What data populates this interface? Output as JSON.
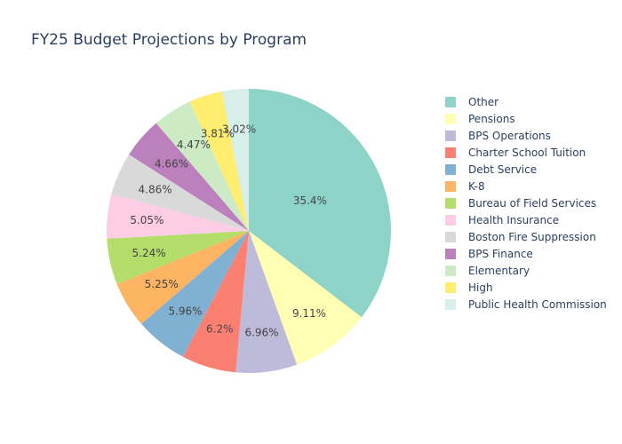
{
  "chart_data": {
    "type": "pie",
    "title": "FY25 Budget Projections by Program",
    "legend_position": "right",
    "direction": "clockwise",
    "sort": "descending",
    "slices": [
      {
        "label": "Other",
        "percent": 35.4,
        "display": "35.4%",
        "color": "#8dd3c7"
      },
      {
        "label": "Pensions",
        "percent": 9.11,
        "display": "9.11%",
        "color": "#ffffb3"
      },
      {
        "label": "BPS Operations",
        "percent": 6.96,
        "display": "6.96%",
        "color": "#bebada"
      },
      {
        "label": "Charter School Tuition",
        "percent": 6.2,
        "display": "6.2%",
        "color": "#fb8072"
      },
      {
        "label": "Debt Service",
        "percent": 5.96,
        "display": "5.96%",
        "color": "#80b1d3"
      },
      {
        "label": "K-8",
        "percent": 5.25,
        "display": "5.25%",
        "color": "#fdb462"
      },
      {
        "label": "Bureau of Field Services",
        "percent": 5.24,
        "display": "5.24%",
        "color": "#b3de69"
      },
      {
        "label": "Health Insurance",
        "percent": 5.05,
        "display": "5.05%",
        "color": "#fccde5"
      },
      {
        "label": "Boston Fire Suppression",
        "percent": 4.86,
        "display": "4.86%",
        "color": "#d9d9d9"
      },
      {
        "label": "BPS Finance",
        "percent": 4.66,
        "display": "4.66%",
        "color": "#bc80bd"
      },
      {
        "label": "Elementary",
        "percent": 4.47,
        "display": "4.47%",
        "color": "#ccebc5"
      },
      {
        "label": "High",
        "percent": 3.81,
        "display": "3.81%",
        "color": "#ffed6f"
      },
      {
        "label": "Public Health Commission",
        "percent": 3.02,
        "display": "3.02%",
        "color": "#d6efeb"
      }
    ]
  }
}
